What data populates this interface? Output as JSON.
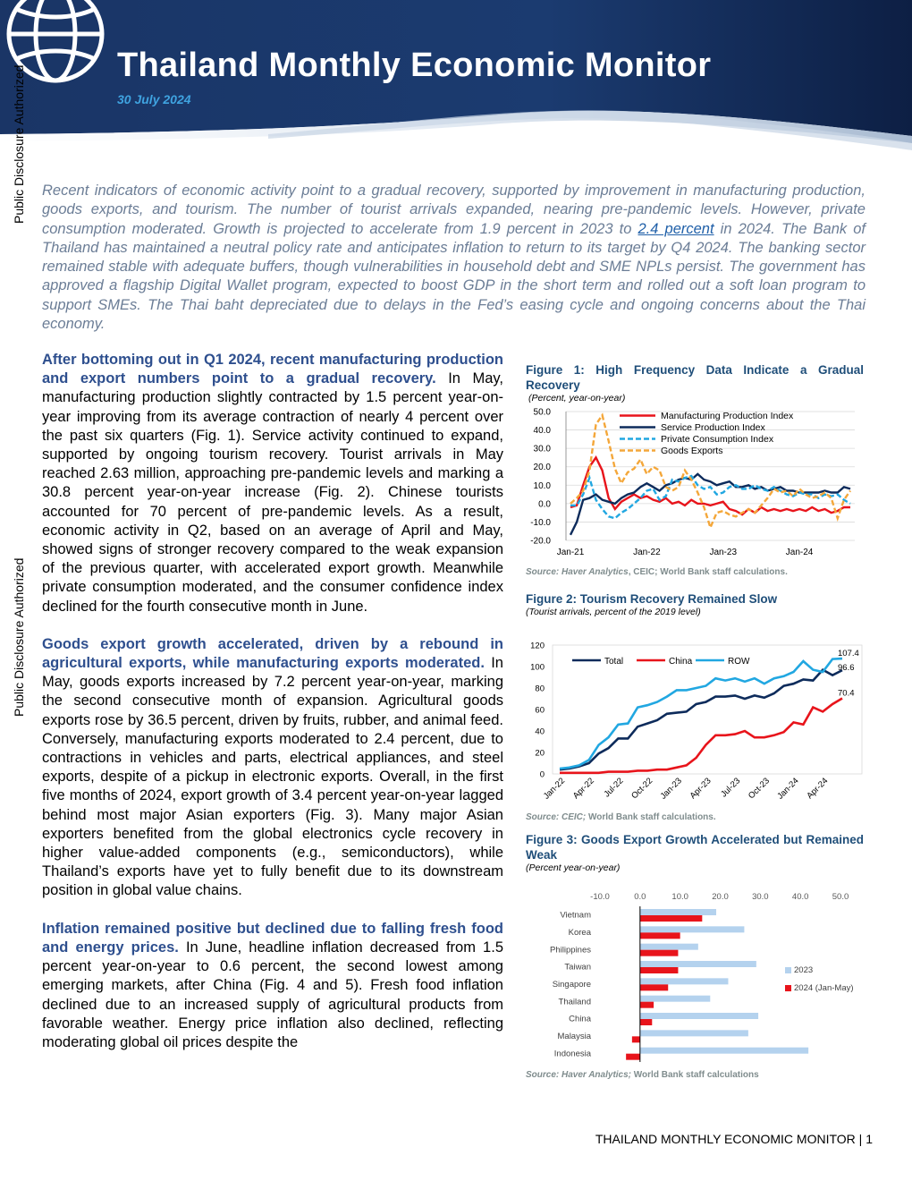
{
  "header": {
    "title": "Thailand Monthly Economic Monitor",
    "date": "30 July 2024",
    "side_label": "Public Disclosure Authorized",
    "logo_icon": "world-bank-globe-icon"
  },
  "abstract": {
    "before_link": "Recent indicators of economic activity point to a gradual recovery, supported by improvement in manufacturing production, goods exports, and tourism. The number of tourist arrivals expanded, nearing pre-pandemic levels. However, private consumption moderated. Growth is projected to accelerate from 1.9 percent in 2023 to ",
    "link": "2.4 percent",
    "after_link": " in 2024. The Bank of Thailand has maintained a neutral policy rate and anticipates inflation to return to its target by Q4 2024. The banking sector remained stable with adequate buffers, though vulnerabilities in household debt and SME NPLs persist. The government has approved a flagship Digital Wallet program, expected to boost GDP in the short term and rolled out a soft loan program to support SMEs. The Thai baht depreciated due to delays in the Fed’s easing cycle and ongoing concerns about the Thai economy."
  },
  "body": [
    {
      "lead": "After bottoming out in Q1 2024, recent manufacturing production and export numbers point to a gradual recovery.",
      "text": " In May, manufacturing production slightly contracted by 1.5 percent year-on-year improving from its average contraction of nearly 4 percent over the past six quarters (Fig. 1). Service activity continued to expand, supported by ongoing tourism recovery. Tourist arrivals in May reached 2.63 million, approaching pre-pandemic levels and marking a 30.8 percent year-on-year increase (Fig. 2). Chinese tourists accounted for 70 percent of pre-pandemic levels. As a result, economic activity in Q2, based on an average of April and May, showed signs of stronger recovery compared to the weak expansion of the previous quarter, with accelerated export growth. Meanwhile private consumption moderated, and the consumer confidence index declined for the fourth consecutive month in June."
    },
    {
      "lead": "Goods export growth accelerated, driven by a rebound in agricultural exports, while manufacturing exports moderated.",
      "text": " In May, goods exports increased by 7.2 percent year-on-year, marking the second consecutive month of expansion. Agricultural goods exports rose by 36.5 percent, driven by fruits, rubber, and animal feed. Conversely, manufacturing exports moderated to 2.4 percent, due to contractions in vehicles and parts, electrical appliances, and steel exports, despite of a pickup in electronic exports. Overall, in the first five months of 2024, export growth of 3.4 percent year-on-year lagged behind most major Asian exporters (Fig. 3). Many major Asian exporters benefited from the global electronics cycle recovery in higher value-added components (e.g., semiconductors), while Thailand’s exports have yet to fully benefit due to its downstream position in global value chains."
    },
    {
      "lead": "Inflation remained positive but declined due to falling fresh food and energy prices.",
      "text": " In June, headline inflation decreased from 1.5 percent year-on-year to 0.6 percent, the second lowest among emerging markets, after China (Fig. 4 and 5). Fresh food inflation declined due to an increased supply of agricultural products from favorable weather. Energy price inflation also declined, reflecting moderating global oil prices despite the"
    }
  ],
  "figures": {
    "fig1": {
      "title": "Figure 1: High Frequency Data Indicate a Gradual Recovery",
      "subtitle": "(Percent, year-on-year)",
      "source_italic": "Source: Haver Analytics",
      "source_rest": ", CEIC; World Bank staff calculations."
    },
    "fig2": {
      "title": "Figure 2: Tourism Recovery Remained Slow",
      "subtitle": "(Tourist arrivals, percent of the 2019 level)",
      "source_italic": "Source: CEIC;",
      "source_rest": " World Bank staff calculations."
    },
    "fig3": {
      "title": "Figure 3: Goods Export Growth Accelerated but Remained Weak",
      "subtitle": "(Percent year-on-year)",
      "source_italic": "Source: Haver Analytics;",
      "source_rest": " World Bank staff calculations"
    }
  },
  "chart_data": [
    {
      "type": "line",
      "ylim": [
        -20,
        50
      ],
      "yticks": [
        "50.0",
        "40.0",
        "30.0",
        "20.0",
        "10.0",
        "0.0",
        "-10.0",
        "-20.0"
      ],
      "xticks": [
        "Jan-21",
        "Jan-22",
        "Jan-23",
        "Jan-24"
      ],
      "series": [
        {
          "name": "Manufacturing Production Index",
          "color": "#e8141b",
          "dash": false,
          "values": [
            -2,
            -1,
            10,
            20,
            25,
            18,
            3,
            -3,
            1,
            3,
            5,
            3,
            4,
            2,
            1,
            3,
            0,
            1,
            -1,
            2,
            0,
            0,
            -1,
            0,
            1,
            -3,
            -4,
            -6,
            -3,
            -5,
            -2,
            -4,
            -3,
            -4,
            -3,
            -4,
            -3,
            -4,
            -2,
            -4,
            -3,
            -5,
            -4,
            -2,
            -2
          ]
        },
        {
          "name": "Service Production Index",
          "color": "#0d2b5b",
          "dash": false,
          "values": [
            -17,
            -10,
            2,
            3,
            5,
            2,
            1,
            0,
            3,
            5,
            6,
            9,
            11,
            9,
            7,
            10,
            11,
            13,
            14,
            13,
            16,
            13,
            12,
            10,
            11,
            12,
            9,
            9,
            10,
            8,
            9,
            7,
            8,
            9,
            7,
            7,
            6,
            6,
            6,
            6,
            7,
            6,
            6,
            9,
            8
          ]
        },
        {
          "name": "Private Consumption Index",
          "color": "#21a7e1",
          "dash": true,
          "values": [
            -1,
            -1,
            5,
            14,
            2,
            -3,
            -7,
            -8,
            -5,
            -3,
            0,
            3,
            7,
            8,
            2,
            4,
            13,
            12,
            14,
            15,
            10,
            8,
            9,
            5,
            6,
            9,
            10,
            8,
            8,
            10,
            8,
            7,
            9,
            7,
            5,
            4,
            6,
            5,
            5,
            3,
            5,
            4,
            5,
            2,
            0
          ]
        },
        {
          "name": "Goods Exports",
          "color": "#f4a73a",
          "dash": true,
          "values": [
            0,
            3,
            7,
            18,
            43,
            48,
            34,
            19,
            11,
            17,
            19,
            24,
            16,
            20,
            18,
            9,
            7,
            9,
            18,
            13,
            6,
            -2,
            -13,
            -5,
            -4,
            -6,
            -7,
            -5,
            -3,
            -5,
            -1,
            3,
            8,
            6,
            7,
            4,
            8,
            5,
            3,
            4,
            6,
            3,
            -8,
            2,
            7
          ]
        }
      ]
    },
    {
      "type": "line",
      "ylim": [
        0,
        120
      ],
      "yticks": [
        0,
        20,
        40,
        60,
        80,
        100,
        120
      ],
      "xticks": [
        "Jan-22",
        "Apr-22",
        "Jul-22",
        "Oct-22",
        "Jan-23",
        "Apr-23",
        "Jul-23",
        "Oct-23",
        "Jan-24",
        "Apr-24"
      ],
      "series": [
        {
          "name": "Total",
          "color": "#0d2b5b",
          "values": [
            4,
            5,
            7,
            10,
            19,
            24,
            33,
            33,
            44,
            47,
            50,
            56,
            57,
            58,
            65,
            67,
            72,
            72,
            73,
            70,
            73,
            71,
            75,
            82,
            84,
            88,
            87,
            97,
            92,
            96.6
          ]
        },
        {
          "name": "China",
          "color": "#e8141b",
          "values": [
            1,
            1,
            1,
            1,
            1,
            2,
            2,
            2,
            3,
            3,
            4,
            4,
            6,
            8,
            15,
            27,
            36,
            36,
            37,
            40,
            34,
            34,
            36,
            39,
            48,
            46,
            62,
            58,
            65,
            70.4
          ]
        },
        {
          "name": "ROW",
          "color": "#21a7e1",
          "values": [
            5,
            6,
            8,
            13,
            27,
            34,
            46,
            47,
            62,
            64,
            67,
            72,
            78,
            78,
            80,
            82,
            89,
            87,
            89,
            86,
            89,
            84,
            89,
            91,
            95,
            105,
            97,
            95,
            107,
            107.4
          ]
        }
      ],
      "end_labels": [
        "107.4",
        "96.6",
        "70.4"
      ]
    },
    {
      "type": "bar",
      "orientation": "horizontal",
      "xlim": [
        -10,
        50
      ],
      "xticks": [
        "-10.0",
        "0.0",
        "10.0",
        "20.0",
        "30.0",
        "40.0",
        "50.0"
      ],
      "categories": [
        "Vietnam",
        "Korea",
        "Philippines",
        "Taiwan",
        "Singapore",
        "Thailand",
        "China",
        "Malaysia",
        "Indonesia"
      ],
      "series": [
        {
          "name": "2023",
          "color": "#b4d2ee",
          "values": [
            19,
            26,
            14.5,
            29,
            22,
            17.5,
            29.5,
            27,
            42
          ]
        },
        {
          "name": "2024 (Jan-May)",
          "color": "#e8141b",
          "values": [
            15.5,
            10,
            9.5,
            9.5,
            7,
            3.4,
            3,
            -2,
            -3.5
          ]
        }
      ]
    }
  ],
  "footer": {
    "running_title": "THAILAND MONTHLY ECONOMIC MONITOR | 1"
  }
}
